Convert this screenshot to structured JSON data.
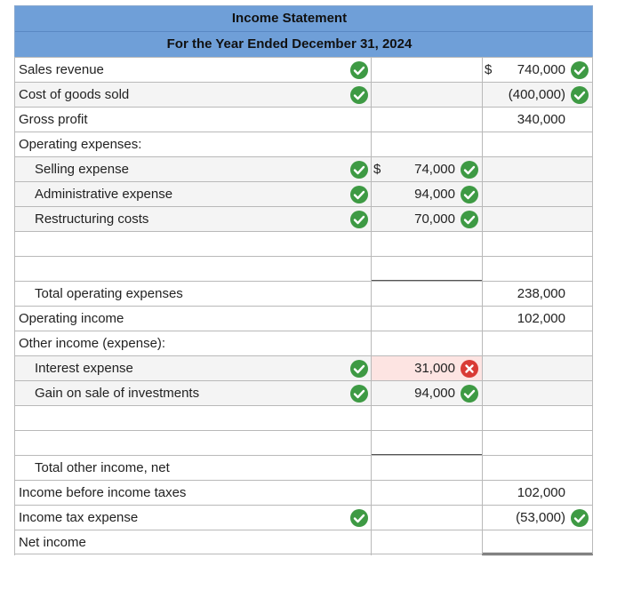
{
  "header": {
    "title": "Income Statement",
    "subtitle": "For the Year Ended December 31, 2024"
  },
  "rows": [
    {
      "label": "Sales revenue",
      "indent": 0,
      "c1_check": true,
      "c3_dollar": "$",
      "c3_value": "740,000",
      "c3_check": true
    },
    {
      "label": "Cost of goods sold",
      "indent": 0,
      "c1_check": true,
      "c3_value": "(400,000)",
      "c3_check": true
    },
    {
      "label": "Gross profit",
      "indent": 0,
      "c3_value": "340,000"
    },
    {
      "label": "Operating expenses:",
      "indent": 0
    },
    {
      "label": "Selling expense",
      "indent": 1,
      "c1_check": true,
      "c2_dollar": "$",
      "c2_value": "74,000",
      "c2_check": true
    },
    {
      "label": "Administrative expense",
      "indent": 1,
      "c1_check": true,
      "c2_value": "94,000",
      "c2_check": true
    },
    {
      "label": "Restructuring costs",
      "indent": 1,
      "c1_check": true,
      "c2_value": "70,000",
      "c2_check": true
    },
    {
      "label": "",
      "indent": 0
    },
    {
      "label": "",
      "indent": 0
    },
    {
      "label": "Total operating expenses",
      "indent": 1,
      "c3_value": "238,000"
    },
    {
      "label": "Operating income",
      "indent": 0,
      "c3_value": "102,000"
    },
    {
      "label": "Other income (expense):",
      "indent": 0
    },
    {
      "label": "Interest expense",
      "indent": 1,
      "c1_check": true,
      "c2_value": "31,000",
      "c2_wrong": true
    },
    {
      "label": "Gain on sale of investments",
      "indent": 1,
      "c1_check": true,
      "c2_value": "94,000",
      "c2_check": true
    },
    {
      "label": "",
      "indent": 0
    },
    {
      "label": "",
      "indent": 0
    },
    {
      "label": "Total other income, net",
      "indent": 1
    },
    {
      "label": "Income before income taxes",
      "indent": 0,
      "c3_value": "102,000"
    },
    {
      "label": "Income tax expense",
      "indent": 0,
      "c1_check": true,
      "c3_value": "(53,000)",
      "c3_check": true
    },
    {
      "label": "Net income",
      "indent": 0
    }
  ],
  "icons": {
    "correct": "check-circle-icon",
    "incorrect": "x-circle-icon"
  },
  "colors": {
    "header_bg": "#6f9fd8",
    "correct": "#3e9a44",
    "incorrect": "#d93a34"
  }
}
